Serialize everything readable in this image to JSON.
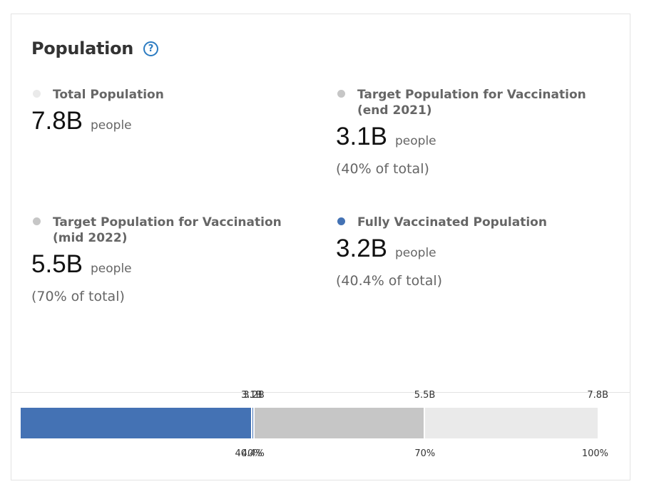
{
  "title": "Population",
  "help_icon": "question-circle-icon",
  "stats": [
    {
      "label": "Total Population",
      "value": "7.8B",
      "unit": "people",
      "pct": "",
      "color": "#eaeaea"
    },
    {
      "label": "Target Population for Vaccination (end 2021)",
      "value": "3.1B",
      "unit": "people",
      "pct": "(40% of total)",
      "color": "#c6c6c6"
    },
    {
      "label": "Target Population for Vaccination (mid 2022)",
      "value": "5.5B",
      "unit": "people",
      "pct": "(70% of total)",
      "color": "#c6c6c6"
    },
    {
      "label": "Fully Vaccinated Population",
      "value": "3.2B",
      "unit": "people",
      "pct": "(40.4% of total)",
      "color": "#4472b4"
    }
  ],
  "bar": {
    "segments": [
      {
        "name": "fully-vaccinated",
        "from": 0,
        "to": 0.404,
        "color": "#4472b4"
      },
      {
        "name": "target-mid-2022",
        "from": 0.404,
        "to": 0.7,
        "color": "#c6c6c6"
      },
      {
        "name": "total-population",
        "from": 0.7,
        "to": 1.0,
        "color": "#eaeaea"
      }
    ],
    "separators": [
      0.4,
      0.404,
      0.7
    ],
    "ticks": [
      {
        "fraction": 0.4,
        "top": "3.1B",
        "bottom": "40%"
      },
      {
        "fraction": 0.404,
        "top": "3.2B",
        "bottom": "40.4%"
      },
      {
        "fraction": 0.7,
        "top": "5.5B",
        "bottom": "70%"
      },
      {
        "fraction": 1.0,
        "top": "7.8B",
        "bottom": "100%"
      }
    ]
  }
}
